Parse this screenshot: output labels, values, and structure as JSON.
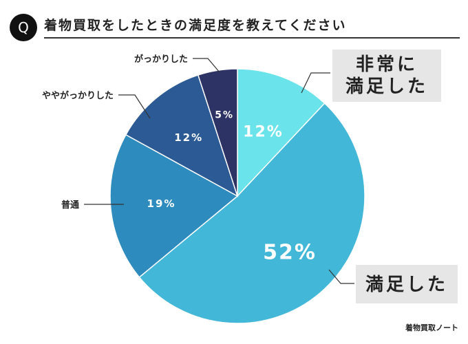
{
  "header": {
    "q_label": "Q",
    "title": "着物買取をしたときの満足度を教えてください"
  },
  "chart_data": {
    "type": "pie",
    "title": "着物買取をしたときの満足度を教えてください",
    "slices": [
      {
        "label": "非常に満足した",
        "value": 12,
        "display": "12%",
        "color": "#6ae3ea"
      },
      {
        "label": "満足した",
        "value": 52,
        "display": "52%",
        "color": "#42b7d8"
      },
      {
        "label": "普通",
        "value": 19,
        "display": "19%",
        "color": "#2e8bbe"
      },
      {
        "label": "ややがっかりした",
        "value": 12,
        "display": "12%",
        "color": "#2b5a94"
      },
      {
        "label": "がっかりした",
        "value": 5,
        "display": "5%",
        "color": "#2e3366"
      }
    ],
    "start_angle_deg": 0,
    "direction": "clockwise"
  },
  "watermark": "着物買取ノート"
}
